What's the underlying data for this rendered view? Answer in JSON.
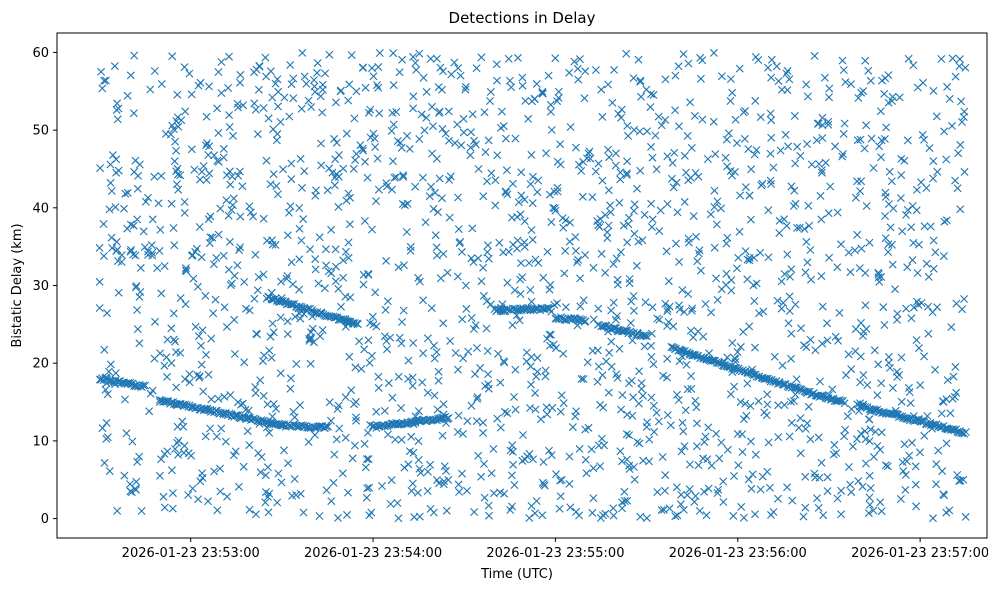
{
  "chart_data": {
    "type": "scatter",
    "title": "Detections in Delay",
    "xlabel": "Time (UTC)",
    "ylabel": "Bistatic Delay (km)",
    "x_axis_type": "datetime",
    "xlim": [
      "2026-01-23 23:52:16",
      "2026-01-23 23:57:22"
    ],
    "ylim": [
      -2.5,
      62.5
    ],
    "x_ticks": [
      "2026-01-23 23:53:00",
      "2026-01-23 23:54:00",
      "2026-01-23 23:55:00",
      "2026-01-23 23:56:00",
      "2026-01-23 23:57:00"
    ],
    "y_ticks": [
      0,
      10,
      20,
      30,
      40,
      50,
      60
    ],
    "marker": "x",
    "color": "#1f77b4",
    "grid": false,
    "clutter_range": [
      0,
      60
    ],
    "time_range": [
      "2026-01-23 23:52:30",
      "2026-01-23 23:57:15"
    ],
    "tracks": [
      {
        "points": [
          [
            "2026-01-23 23:52:30",
            18.0
          ],
          [
            "2026-01-23 23:52:45",
            17.0
          ]
        ]
      },
      {
        "points": [
          [
            "2026-01-23 23:52:50",
            15.2
          ],
          [
            "2026-01-23 23:53:30",
            12.0
          ]
        ]
      },
      {
        "points": [
          [
            "2026-01-23 23:53:30",
            12.0
          ],
          [
            "2026-01-23 23:53:45",
            11.7
          ]
        ]
      },
      {
        "points": [
          [
            "2026-01-23 23:53:25",
            28.5
          ],
          [
            "2026-01-23 23:53:55",
            25.0
          ]
        ]
      },
      {
        "points": [
          [
            "2026-01-23 23:54:00",
            11.8
          ],
          [
            "2026-01-23 23:54:25",
            13.0
          ]
        ]
      },
      {
        "points": [
          [
            "2026-01-23 23:54:40",
            26.8
          ],
          [
            "2026-01-23 23:54:58",
            27.0
          ]
        ]
      },
      {
        "points": [
          [
            "2026-01-23 23:55:00",
            25.8
          ],
          [
            "2026-01-23 23:55:10",
            25.5
          ]
        ]
      },
      {
        "points": [
          [
            "2026-01-23 23:55:15",
            24.8
          ],
          [
            "2026-01-23 23:55:30",
            23.5
          ]
        ]
      },
      {
        "points": [
          [
            "2026-01-23 23:55:38",
            22.0
          ],
          [
            "2026-01-23 23:56:25",
            16.0
          ]
        ]
      },
      {
        "points": [
          [
            "2026-01-23 23:56:25",
            16.0
          ],
          [
            "2026-01-23 23:56:35",
            15.0
          ]
        ]
      },
      {
        "points": [
          [
            "2026-01-23 23:56:40",
            14.5
          ],
          [
            "2026-01-23 23:57:15",
            11.0
          ]
        ]
      }
    ]
  }
}
